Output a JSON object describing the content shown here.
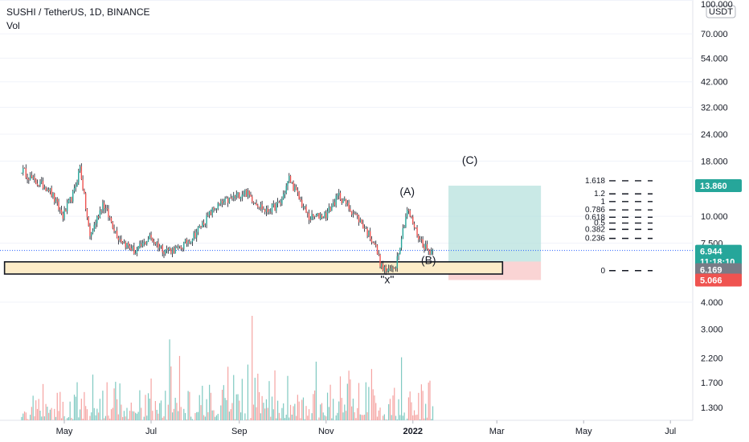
{
  "header": {
    "title": "SUSHI / TetherUS, 1D, BINANCE",
    "volume_label": "Vol"
  },
  "axis": {
    "currency_badge": "USDT",
    "top_label": "100.000"
  },
  "price_tags": {
    "target": "13.860",
    "current": "6.944",
    "countdown": "11:18:10",
    "entry": "6.169",
    "stop": "5.066"
  },
  "colors": {
    "up": "#26a69a",
    "down": "#ef5350",
    "up_volume": "#7fc9c1",
    "down_volume": "#f5a3a1",
    "zone_fill": "#fdecc8",
    "profit_zone": "#b2dfdb",
    "loss_zone": "#f9c9c9",
    "current_tag": "#26a69a",
    "target_tag": "#26a69a",
    "entry_tag": "#787b86",
    "stop_tag": "#ef5350"
  },
  "chart_data": {
    "type": "candlestick",
    "symbol": "SUSHI / TetherUS",
    "timeframe": "1D",
    "exchange": "BINANCE",
    "y_scale": "log",
    "ylim": [
      1.3,
      100
    ],
    "y_ticks": [
      "100.000",
      "70.000",
      "54.000",
      "42.000",
      "32.000",
      "24.000",
      "18.000",
      "10.000",
      "7.500",
      "4.000",
      "3.000",
      "2.200",
      "1.700",
      "1.300"
    ],
    "x_ticks": [
      "May",
      "Jul",
      "Sep",
      "Nov",
      "2022",
      "Mar",
      "May",
      "Jul"
    ],
    "price_path": [
      [
        "2021-04-01",
        16.5
      ],
      [
        "2021-04-10",
        14.5
      ],
      [
        "2021-04-20",
        13.5
      ],
      [
        "2021-04-30",
        10.0
      ],
      [
        "2021-05-08",
        13.0
      ],
      [
        "2021-05-12",
        17.0
      ],
      [
        "2021-05-19",
        8.0
      ],
      [
        "2021-05-28",
        11.5
      ],
      [
        "2021-06-08",
        8.0
      ],
      [
        "2021-06-20",
        6.8
      ],
      [
        "2021-06-30",
        8.0
      ],
      [
        "2021-07-10",
        7.0
      ],
      [
        "2021-07-20",
        7.0
      ],
      [
        "2021-07-30",
        8.0
      ],
      [
        "2021-08-15",
        11.0
      ],
      [
        "2021-08-31",
        12.5
      ],
      [
        "2021-09-05",
        13.0
      ],
      [
        "2021-09-20",
        10.5
      ],
      [
        "2021-09-30",
        11.5
      ],
      [
        "2021-10-06",
        15.0
      ],
      [
        "2021-10-20",
        9.8
      ],
      [
        "2021-11-01",
        10.2
      ],
      [
        "2021-11-10",
        12.5
      ],
      [
        "2021-11-25",
        9.5
      ],
      [
        "2021-12-05",
        7.5
      ],
      [
        "2021-12-10",
        5.8
      ],
      [
        "2021-12-15",
        5.5
      ],
      [
        "2021-12-20",
        6.0
      ],
      [
        "2021-12-28",
        10.8
      ],
      [
        "2022-01-05",
        8.0
      ],
      [
        "2022-01-12",
        6.9
      ],
      [
        "2022-01-15",
        6.944
      ]
    ],
    "volume_range": [
      1.3,
      3.4
    ],
    "annotations": [
      {
        "label": "(A)",
        "date": "2021-12-28",
        "price": 12.5
      },
      {
        "label": "(B)",
        "date": "2022-01-12",
        "price": 6.0
      },
      {
        "label": "(C)",
        "date": "2022-02-10",
        "price": 17.5
      },
      {
        "label": "\"x\"",
        "date": "2021-12-14",
        "price": 4.9
      }
    ],
    "support_zone": {
      "from": "2021-03-20",
      "to": "2022-03-05",
      "low": 5.4,
      "high": 6.15
    },
    "position": {
      "entry": 6.169,
      "target": 13.86,
      "stop": 5.066,
      "from": "2022-01-26",
      "to": "2022-04-01"
    },
    "fib_levels": [
      {
        "label": "1.618",
        "price": 14.6
      },
      {
        "label": "1.2",
        "price": 12.7
      },
      {
        "label": "1",
        "price": 11.7
      },
      {
        "label": "0.786",
        "price": 10.7
      },
      {
        "label": "0.618",
        "price": 9.9
      },
      {
        "label": "0.5",
        "price": 9.3
      },
      {
        "label": "0.382",
        "price": 8.7
      },
      {
        "label": "0.236",
        "price": 7.9
      },
      {
        "label": "0",
        "price": 5.6
      }
    ]
  }
}
